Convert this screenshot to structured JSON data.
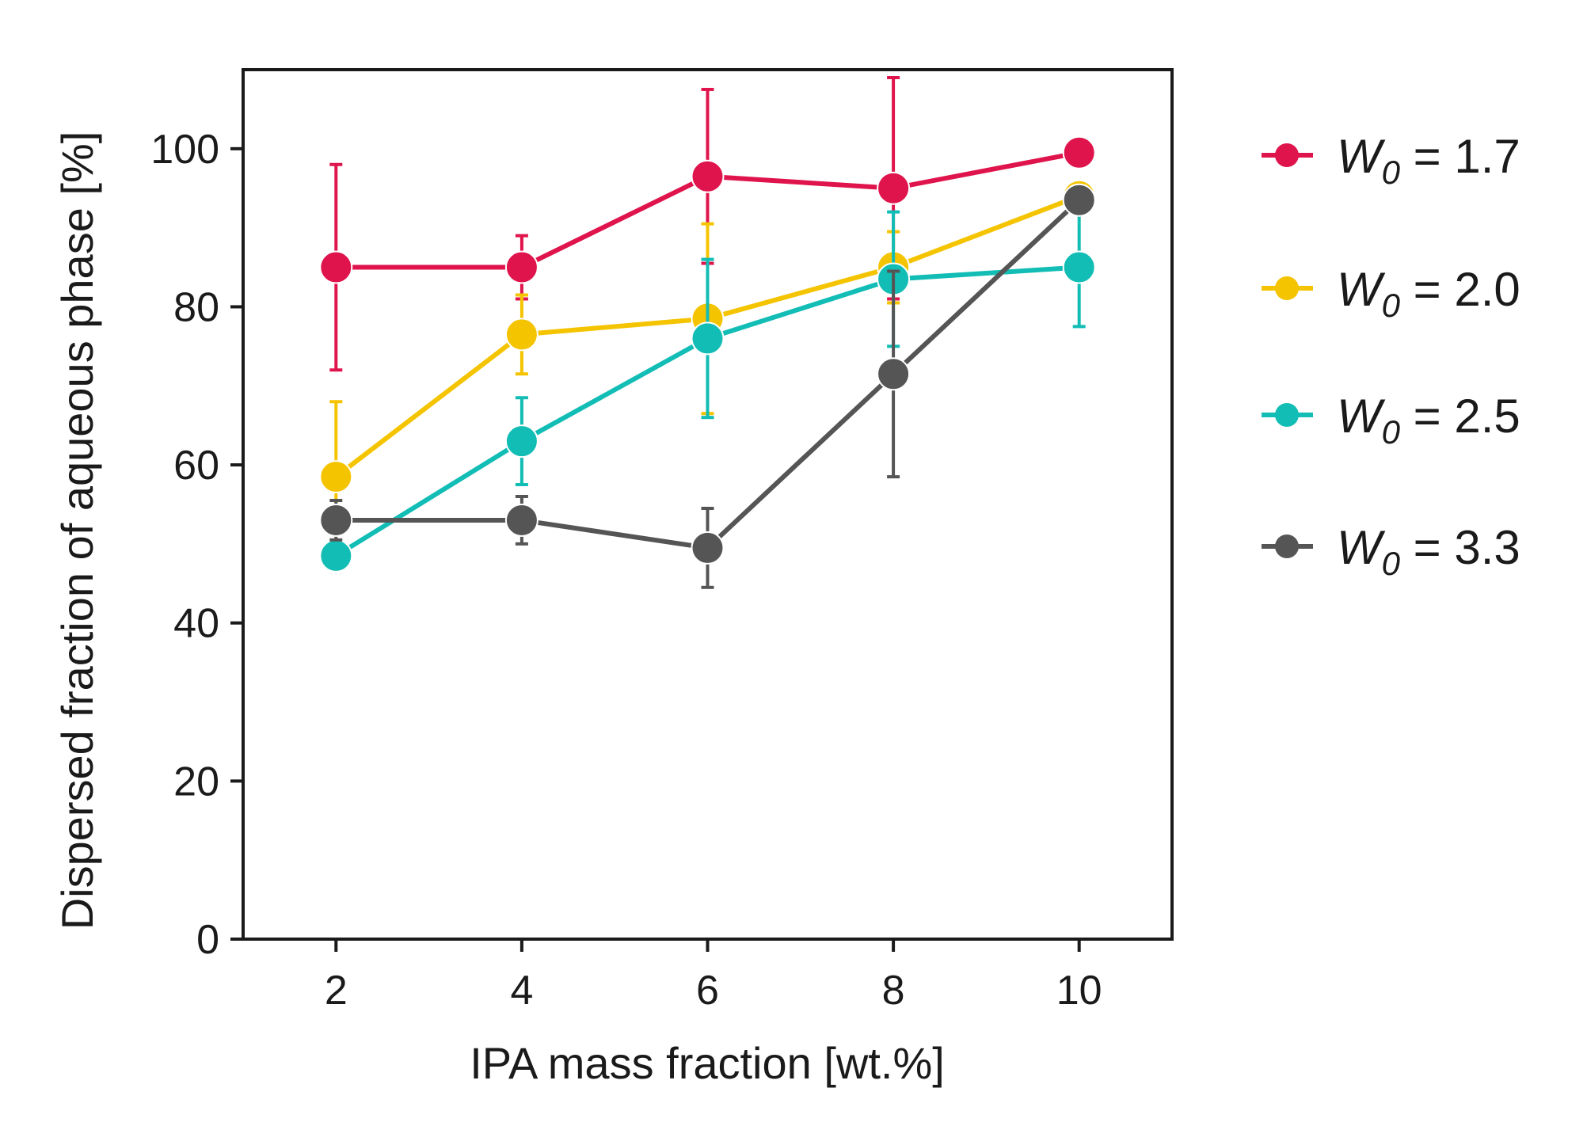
{
  "chart_data": {
    "type": "line",
    "title": "",
    "xlabel": "IPA mass fraction [wt.%]",
    "ylabel": "Dispersed fraction of aqueous phase [%]",
    "x": [
      2,
      4,
      6,
      8,
      10
    ],
    "xticks": [
      "2",
      "4",
      "6",
      "8",
      "10"
    ],
    "yticks": [
      "0",
      "20",
      "40",
      "60",
      "80",
      "100"
    ],
    "xlim": [
      1,
      11
    ],
    "ylim": [
      0,
      110
    ],
    "grid": false,
    "legend_position": "right",
    "series": [
      {
        "name": "W0 = 1.7",
        "legend_symbol": "W",
        "legend_subscript": "0",
        "legend_value": " = 1.7",
        "color": "#e0144c",
        "values": [
          85,
          85,
          96.5,
          95,
          99.5
        ],
        "errors": [
          13,
          4,
          11,
          14,
          0
        ]
      },
      {
        "name": "W0 = 2.0",
        "legend_symbol": "W",
        "legend_subscript": "0",
        "legend_value": " = 2.0",
        "color": "#f5c400",
        "values": [
          58.5,
          76.5,
          78.5,
          85,
          94
        ],
        "errors": [
          9.5,
          5,
          12,
          4.5,
          0
        ]
      },
      {
        "name": "W0 = 2.5",
        "legend_symbol": "W",
        "legend_subscript": "0",
        "legend_value": " = 2.5",
        "color": "#12bdb5",
        "values": [
          48.5,
          63,
          76,
          83.5,
          85
        ],
        "errors": [
          0,
          5.5,
          10,
          8.5,
          7.5
        ]
      },
      {
        "name": "W0 = 3.3",
        "legend_symbol": "W",
        "legend_subscript": "0",
        "legend_value": " = 3.3",
        "color": "#555555",
        "values": [
          53,
          53,
          49.5,
          71.5,
          93.5
        ],
        "errors": [
          2.5,
          3,
          5,
          13,
          0
        ]
      }
    ]
  }
}
